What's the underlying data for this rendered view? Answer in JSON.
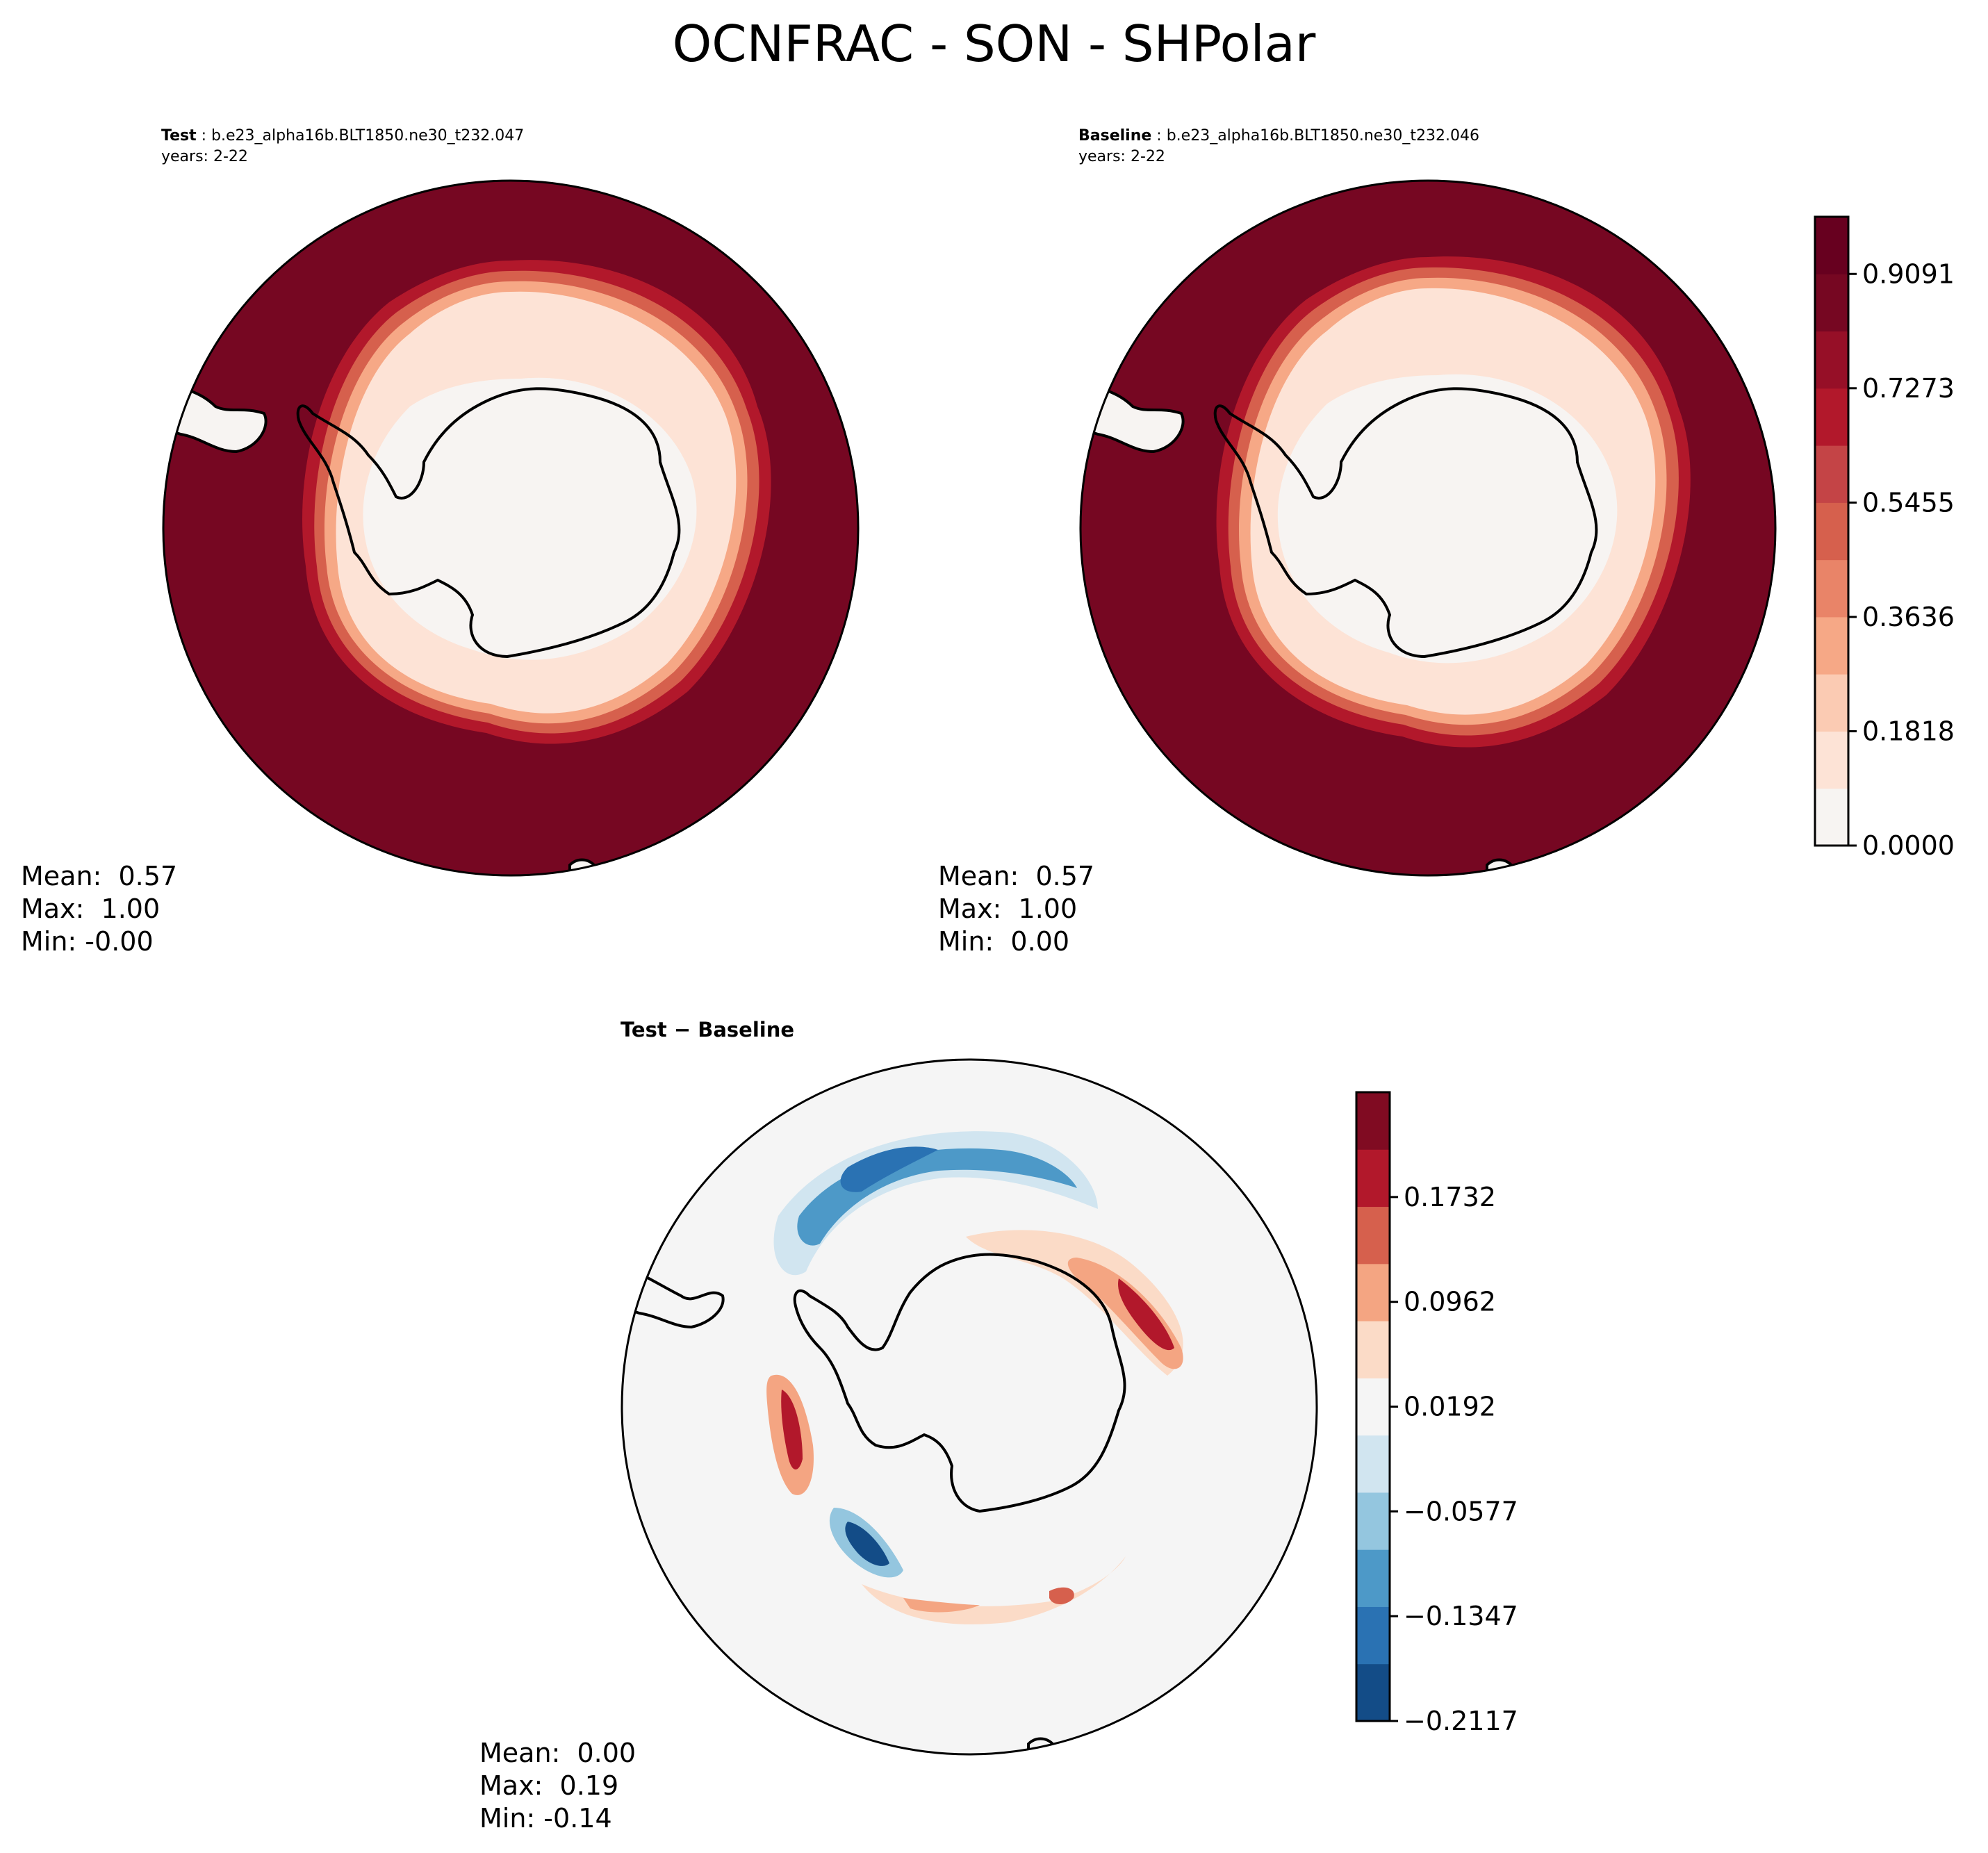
{
  "title": "OCNFRAC - SON - SHPolar",
  "panels": {
    "test": {
      "label": "Test",
      "case": "b.e23_alpha16b.BLT1850.ne30_t232.047",
      "years": "years: 2-22",
      "stats": {
        "mean": "Mean:  0.57",
        "max": "Max:  1.00",
        "min": "Min: -0.00"
      }
    },
    "baseline": {
      "label": "Baseline",
      "case": "b.e23_alpha16b.BLT1850.ne30_t232.046",
      "years": "years: 2-22",
      "stats": {
        "mean": "Mean:  0.57",
        "max": "Max:  1.00",
        "min": "Min:  0.00"
      }
    },
    "diff": {
      "label": "Test − Baseline",
      "stats": {
        "mean": "Mean:  0.00",
        "max": "Max:  0.19",
        "min": "Min: -0.14"
      }
    }
  },
  "chart_data": [
    {
      "type": "heatmap",
      "panel": "test",
      "projection": "south polar stereographic",
      "colormap": "RdBu_r",
      "value_range": [
        0,
        1
      ],
      "description_of_field": "ocean fraction ~0 over Antarctica and sea ice zone, ~1 over open ocean"
    },
    {
      "type": "heatmap",
      "panel": "baseline",
      "projection": "south polar stereographic",
      "colormap": "RdBu_r",
      "value_range": [
        0,
        1
      ]
    },
    {
      "type": "heatmap",
      "panel": "diff",
      "projection": "south polar stereographic",
      "colormap": "RdBu_r",
      "value_range": [
        -0.2117,
        0.2117
      ]
    }
  ],
  "colorbars": {
    "main": {
      "ticks": [
        "0.9091",
        "0.7273",
        "0.5455",
        "0.3636",
        "0.1818",
        "0.0000"
      ],
      "tick_values": [
        0.9091,
        0.7273,
        0.5455,
        0.3636,
        0.1818,
        0.0
      ],
      "levels": 11,
      "colors": [
        "#f7f4f2",
        "#fde3d6",
        "#fbcbb3",
        "#f6a886",
        "#e98468",
        "#d6604d",
        "#c44446",
        "#b2182b",
        "#960f27",
        "#760722",
        "#67001f"
      ]
    },
    "diff": {
      "ticks": [
        "0.1732",
        "0.0962",
        "0.0192",
        "−0.0577",
        "−0.1347",
        "−0.2117"
      ],
      "tick_values": [
        0.1732,
        0.0962,
        0.0192,
        -0.0577,
        -0.1347,
        -0.2117
      ],
      "colors": [
        "#134c87",
        "#2a72b3",
        "#4d99c8",
        "#94c6df",
        "#d1e5f0",
        "#f5f5f5",
        "#fbdbc7",
        "#f4a582",
        "#d6604d",
        "#b2182b",
        "#800b22"
      ]
    }
  }
}
